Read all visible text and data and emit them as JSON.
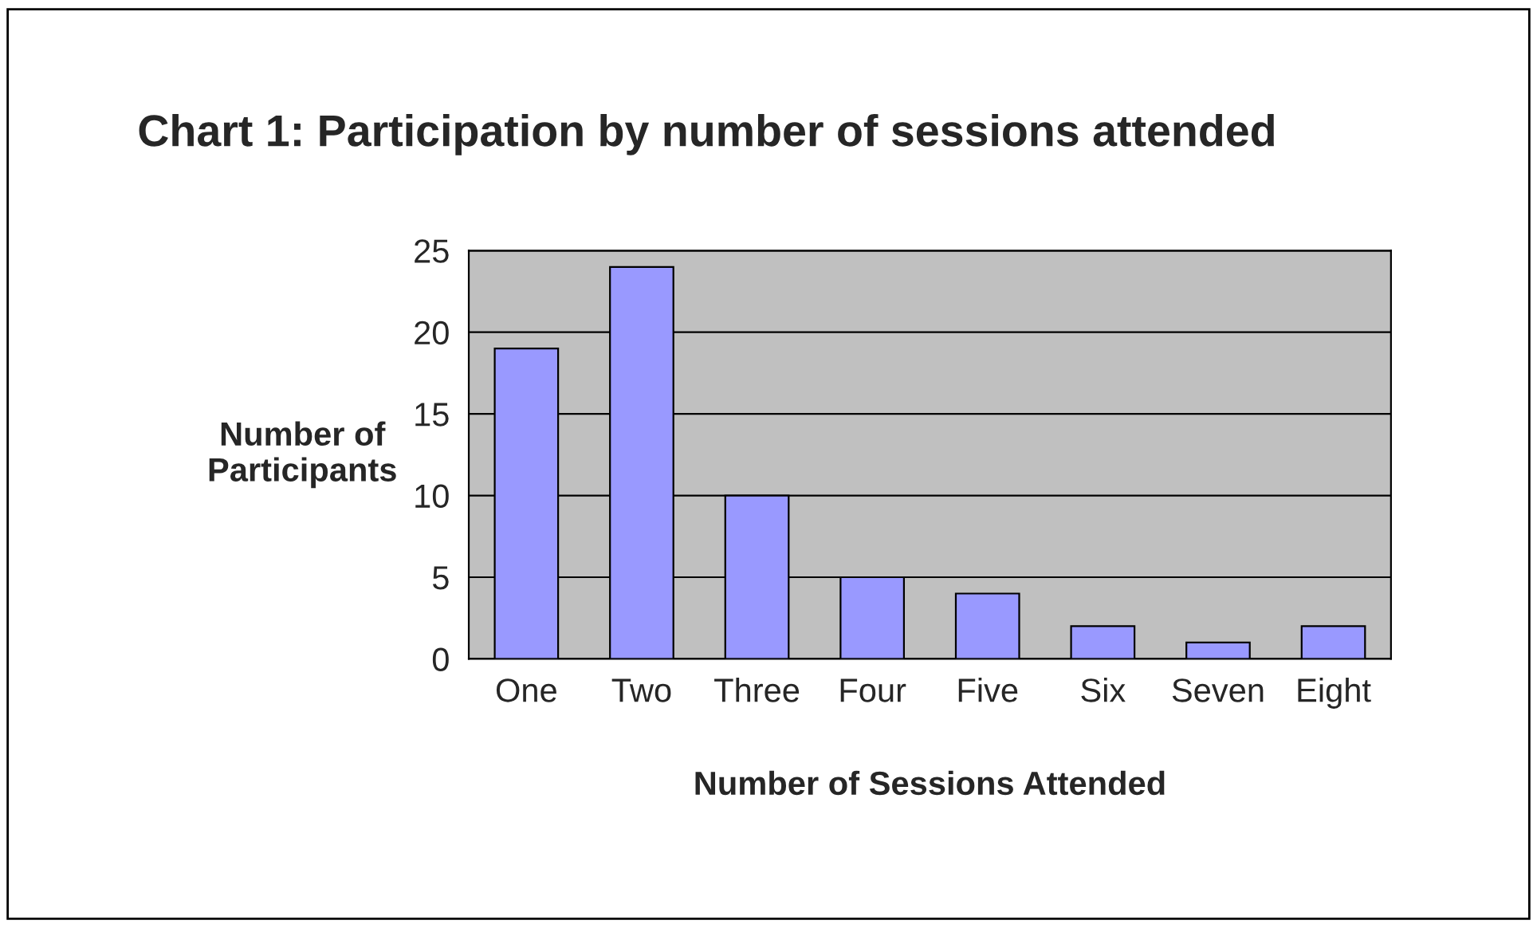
{
  "chart_data": {
    "type": "bar",
    "title": "Chart 1: Participation by number of sessions attended",
    "xlabel": "Number of Sessions Attended",
    "ylabel": "Number of\nParticipants",
    "categories": [
      "One",
      "Two",
      "Three",
      "Four",
      "Five",
      "Six",
      "Seven",
      "Eight"
    ],
    "values": [
      19,
      24,
      10,
      5,
      4,
      2,
      1,
      2
    ],
    "color": "#9999ff",
    "ylim": [
      0,
      25
    ],
    "yticks": [
      0,
      5,
      10,
      15,
      20,
      25
    ],
    "grid": "y",
    "legend": false
  }
}
